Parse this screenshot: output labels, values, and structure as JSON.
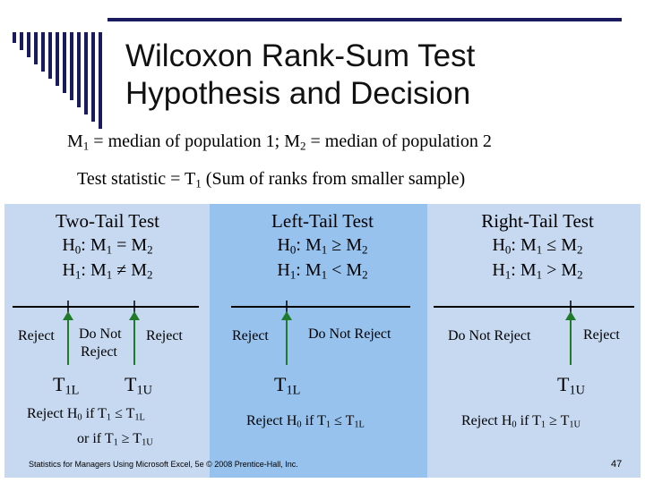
{
  "title": {
    "line1": "Wilcoxon Rank-Sum Test",
    "line2": "Hypothesis and Decision"
  },
  "definitions": {
    "m1": "M",
    "m1_text": " = median of population 1;  M",
    "m2_text": " = median of population 2"
  },
  "test_statistic": {
    "prefix": "Test statistic = T",
    "suffix": "  (Sum of ranks from smaller sample)"
  },
  "panels": {
    "two_tail": {
      "title": "Two-Tail Test",
      "h0": "H0: M1 = M2",
      "h1": "H1: M1 ≠ M2",
      "reject_left": "Reject",
      "do_not_reject_1": "Do Not",
      "do_not_reject_2": "Reject",
      "reject_right": "Reject",
      "crit_lower": "T1L",
      "crit_upper": "T1U",
      "rule_1": "Reject H0 if T1 ≤ T1L",
      "rule_2": "or if T1 ≥ T1U"
    },
    "left_tail": {
      "title": "Left-Tail Test",
      "h0": "H0: M1 ≥ M2",
      "h1": "H1: M1 < M2",
      "reject": "Reject",
      "do_not_reject": "Do Not Reject",
      "crit": "T1L",
      "rule": "Reject H0 if T1 ≤ T1L"
    },
    "right_tail": {
      "title": "Right-Tail Test",
      "h0": "H0: M1 ≤ M2",
      "h1": "H1: M1 > M2",
      "do_not_reject": "Do Not Reject",
      "reject": "Reject",
      "crit": "T1U",
      "rule": "Reject H0 if T1 ≥ T1U"
    }
  },
  "footer": "Statistics for Managers Using Microsoft Excel, 5e © 2008 Prentice-Hall, Inc.",
  "page_number": "47",
  "colors": {
    "panel_light": "#c6d9f1",
    "panel_mid": "#97c2ee",
    "accent": "#1a1a5e",
    "marker": "#1f7a2a"
  }
}
